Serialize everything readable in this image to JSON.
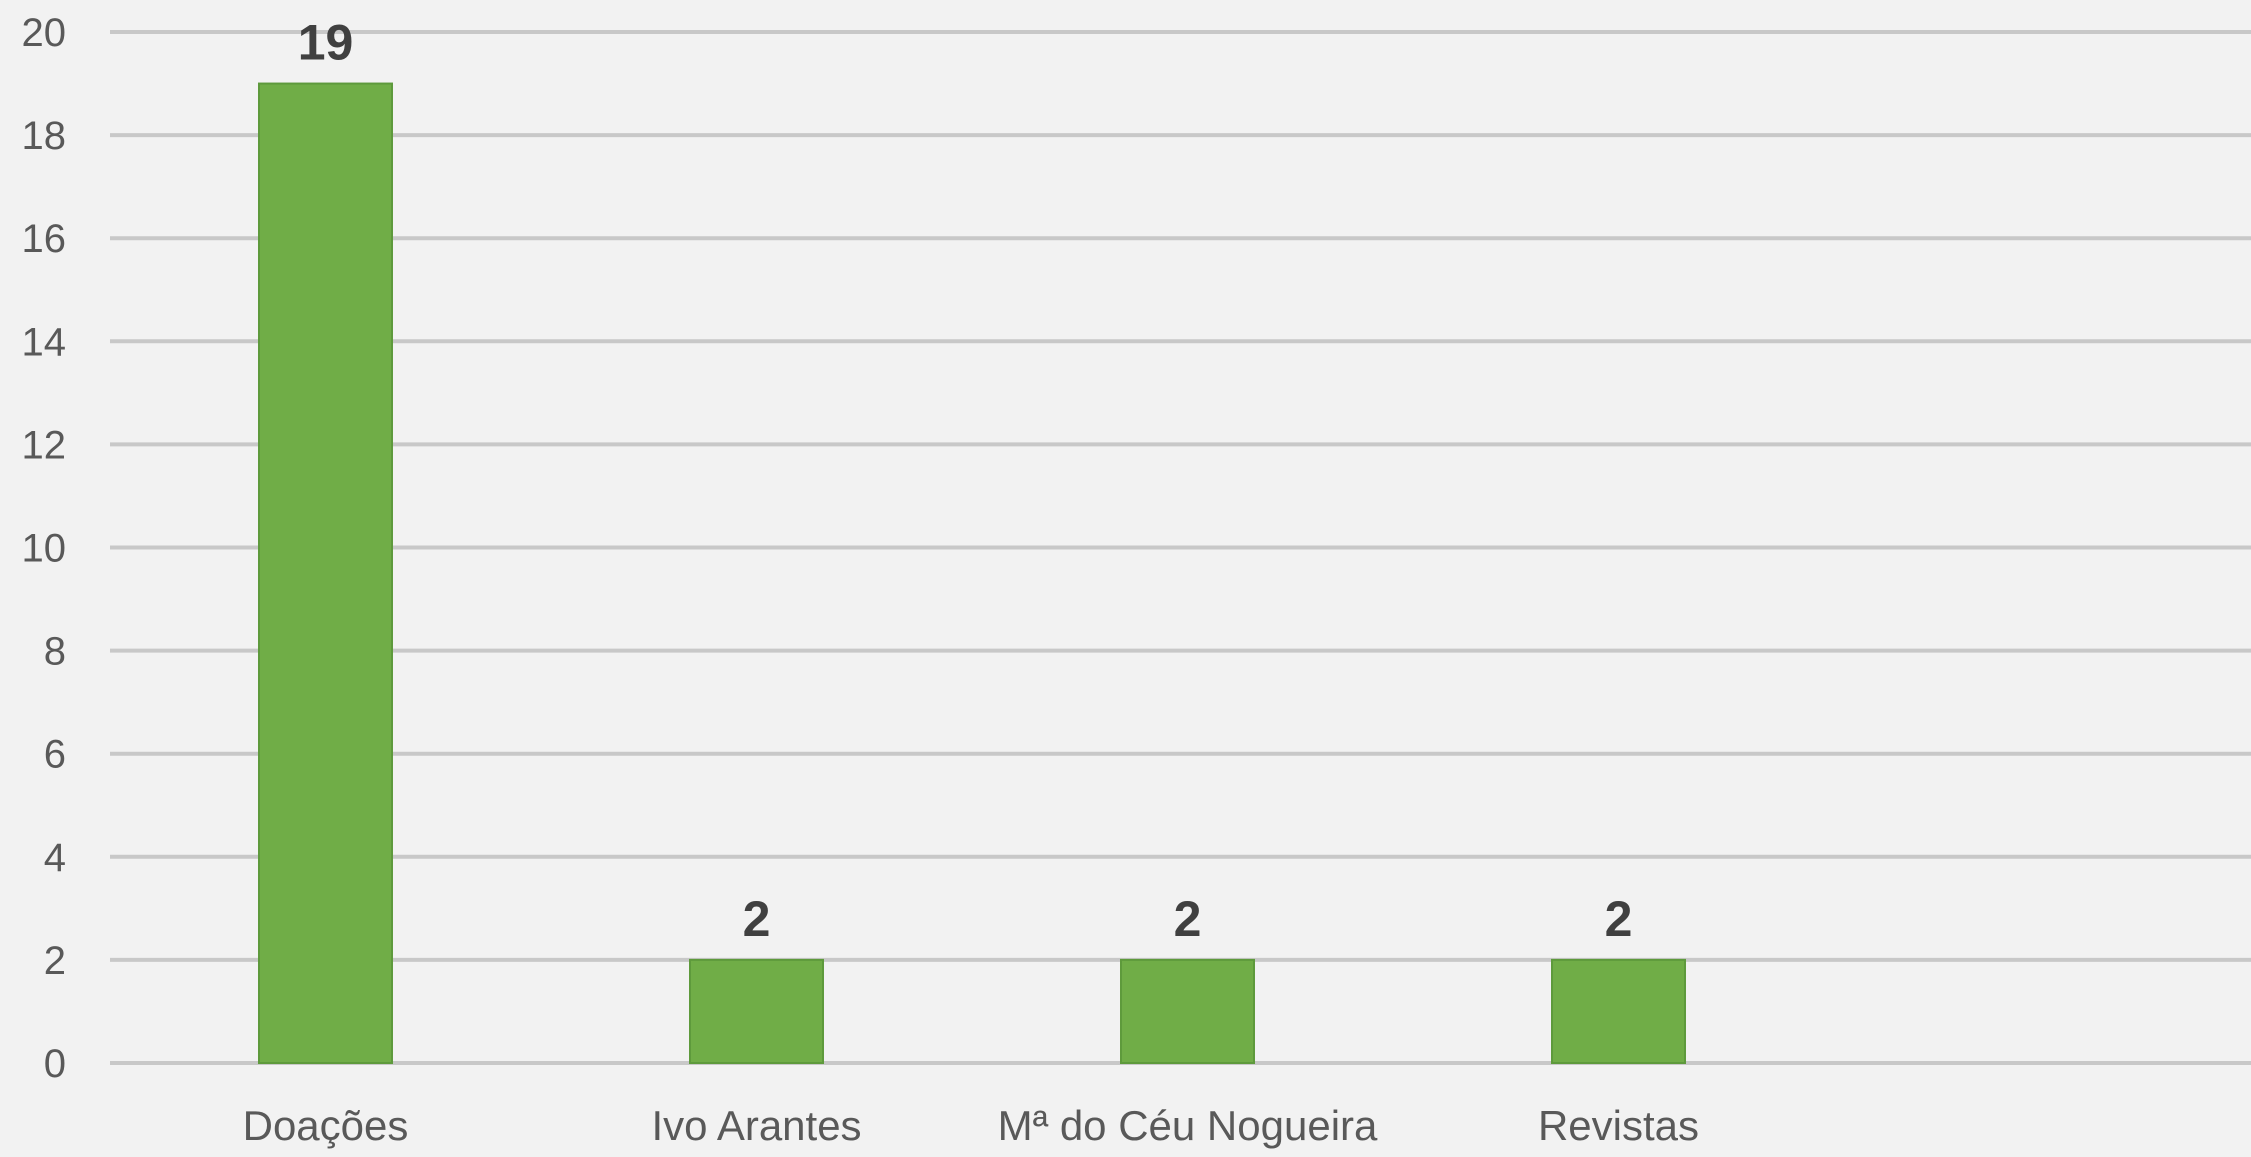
{
  "chart_data": {
    "type": "bar",
    "title": "",
    "xlabel": "",
    "ylabel": "",
    "categories": [
      "Doações",
      "Ivo Arantes",
      "Mª do Céu Nogueira",
      "Revistas",
      ""
    ],
    "values": [
      19,
      2,
      2,
      2,
      null
    ],
    "data_labels": [
      "19",
      "2",
      "2",
      "2",
      ""
    ],
    "ylim": [
      0,
      20
    ],
    "yticks": [
      0,
      2,
      4,
      6,
      8,
      10,
      12,
      14,
      16,
      18,
      20
    ],
    "ytick_labels": [
      "0",
      "2",
      "4",
      "6",
      "8",
      "10",
      "12",
      "14",
      "16",
      "18",
      "20"
    ],
    "grid": true,
    "legend": "none",
    "colors": {
      "bar": "#70ad47",
      "background": "#f2f2f2",
      "grid": "#c8c8c8"
    }
  }
}
